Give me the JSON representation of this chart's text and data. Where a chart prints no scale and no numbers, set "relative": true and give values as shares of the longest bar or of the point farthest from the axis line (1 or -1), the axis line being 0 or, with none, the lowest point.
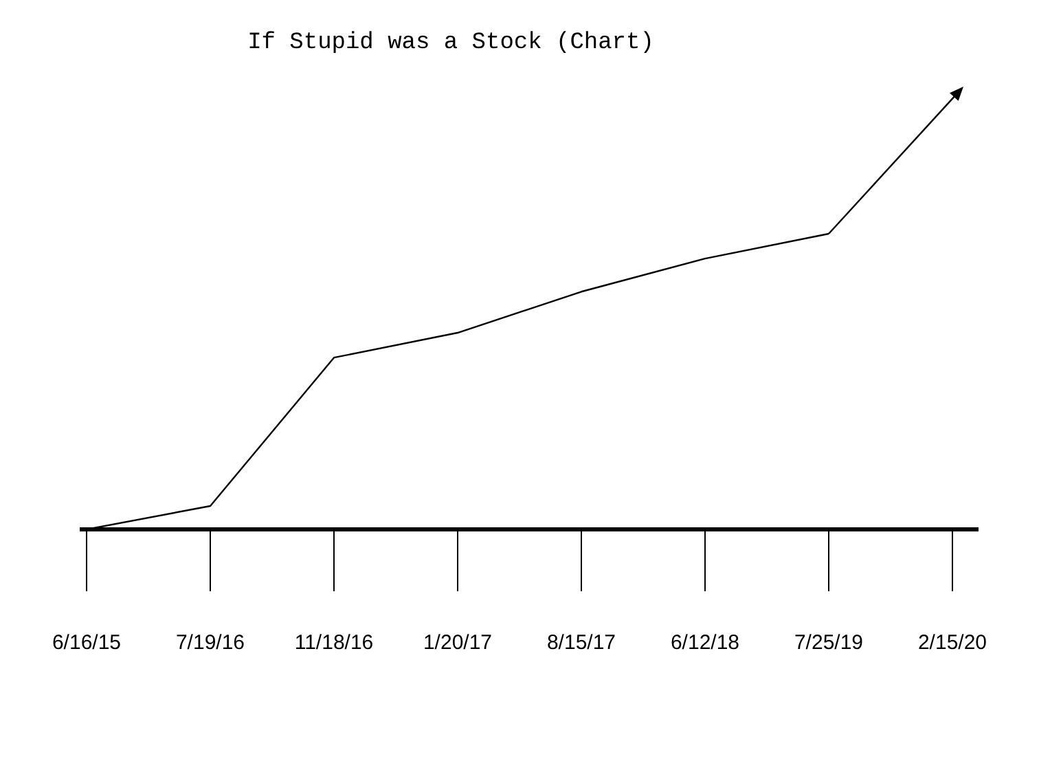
{
  "chart_data": {
    "type": "line",
    "title": "If Stupid was a Stock (Chart)",
    "relative": true,
    "categories": [
      "6/16/15",
      "7/19/16",
      "11/18/16",
      "1/20/17",
      "8/15/17",
      "6/12/18",
      "7/25/19",
      "2/15/20"
    ],
    "series": [
      {
        "color": "#000000",
        "values": [
          0,
          0.079,
          0.581,
          0.665,
          0.804,
          0.916,
          1,
          null
        ]
      }
    ],
    "marker": "none",
    "line_style": "solid",
    "grid": false
  }
}
